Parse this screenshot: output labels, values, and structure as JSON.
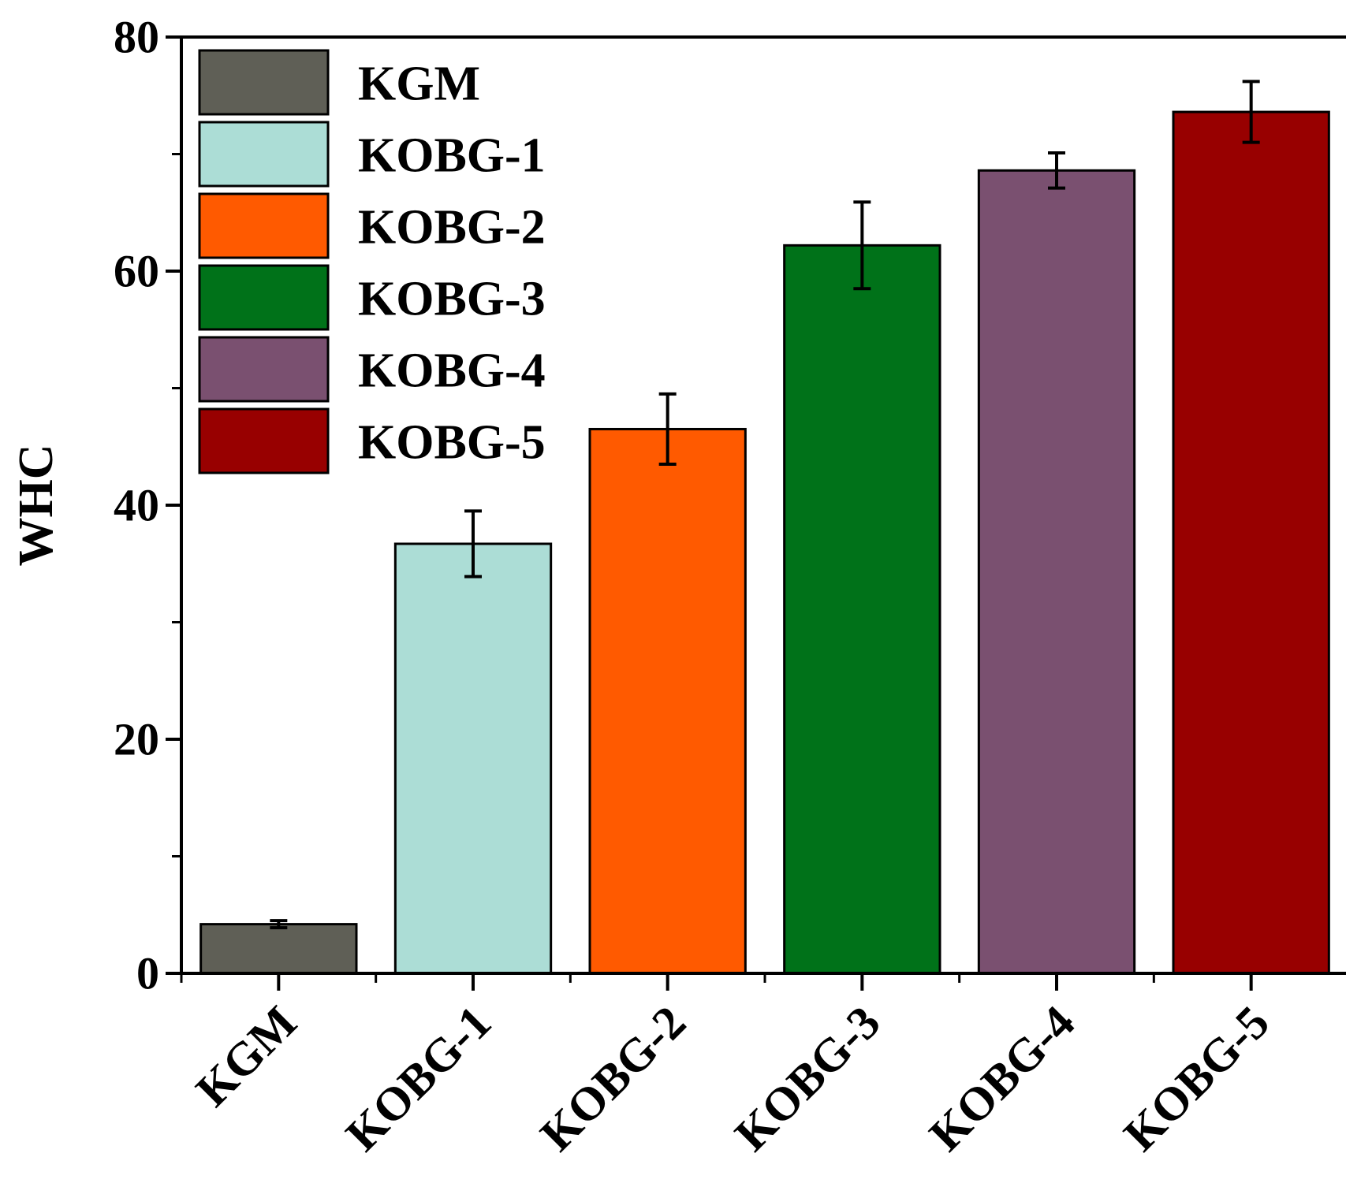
{
  "chart_data": {
    "type": "bar",
    "title": "",
    "xlabel": "",
    "ylabel": "WHC",
    "ylim": [
      0,
      80
    ],
    "yticks": [
      0,
      20,
      40,
      60,
      80
    ],
    "categories": [
      "KGM",
      "KOBG-1",
      "KOBG-2",
      "KOBG-3",
      "KOBG-4",
      "KOBG-5"
    ],
    "values": [
      4.2,
      36.7,
      46.5,
      62.2,
      68.6,
      73.6
    ],
    "errors": [
      0.3,
      2.8,
      3.0,
      3.7,
      1.5,
      2.6
    ],
    "colors": [
      "#5f5f56",
      "#acddd6",
      "#ff5a00",
      "#007219",
      "#7a5070",
      "#980000"
    ],
    "legend": {
      "position": "top-left",
      "entries": [
        "KGM",
        "KOBG-1",
        "KOBG-2",
        "KOBG-3",
        "KOBG-4",
        "KOBG-5"
      ]
    },
    "grid": false
  }
}
